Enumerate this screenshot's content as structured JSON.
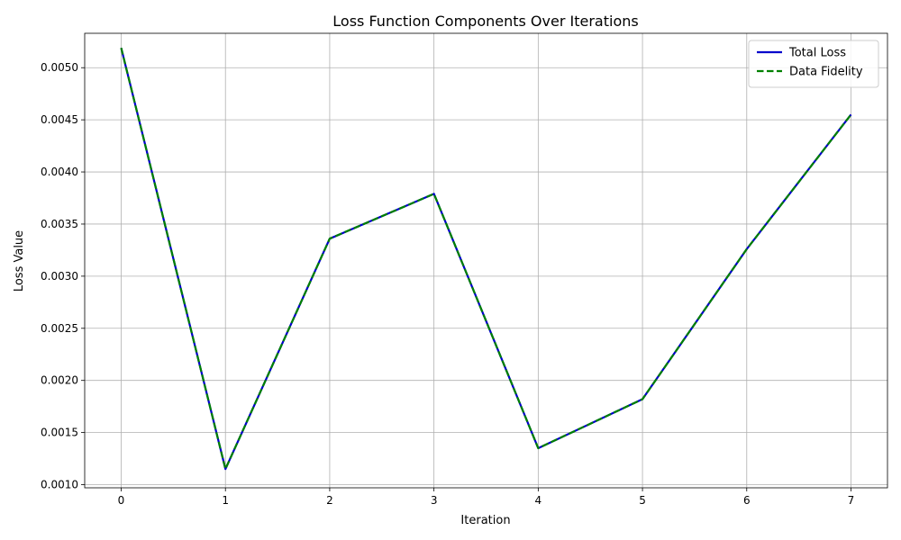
{
  "chart_data": {
    "type": "line",
    "title": "Loss Function Components Over Iterations",
    "xlabel": "Iteration",
    "ylabel": "Loss Value",
    "x": [
      0,
      1,
      2,
      3,
      4,
      5,
      6,
      7
    ],
    "xticks": [
      "0",
      "1",
      "2",
      "3",
      "4",
      "5",
      "6",
      "7"
    ],
    "yticks": [
      "0.0010",
      "0.0015",
      "0.0020",
      "0.0025",
      "0.0030",
      "0.0035",
      "0.0040",
      "0.0045",
      "0.0050"
    ],
    "xlim": [
      -0.35,
      7.35
    ],
    "ylim": [
      0.00097,
      0.00533
    ],
    "grid": true,
    "legend_position": "top-right",
    "series": [
      {
        "name": "Total Loss",
        "color": "#0000cc",
        "style": "solid",
        "values": [
          0.00519,
          0.00115,
          0.00336,
          0.00379,
          0.00135,
          0.00182,
          0.00326,
          0.00455
        ]
      },
      {
        "name": "Data Fidelity",
        "color": "#008000",
        "style": "dashed",
        "values": [
          0.00519,
          0.00115,
          0.00336,
          0.00379,
          0.00135,
          0.00182,
          0.00326,
          0.00455
        ]
      }
    ]
  }
}
